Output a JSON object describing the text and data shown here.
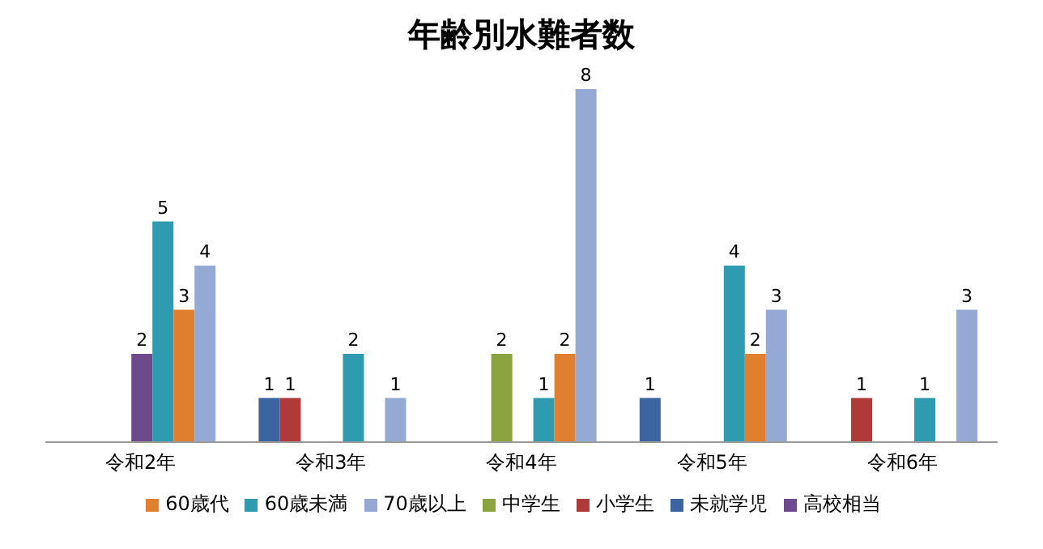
{
  "chart_data": {
    "type": "bar",
    "title": "年齢別水難者数",
    "categories": [
      "令和2年",
      "令和3年",
      "令和4年",
      "令和5年",
      "令和6年"
    ],
    "series": [
      {
        "name": "未就学児",
        "color": "#3b64a0",
        "values": [
          null,
          1,
          null,
          1,
          null
        ]
      },
      {
        "name": "小学生",
        "color": "#b03a3a",
        "values": [
          null,
          1,
          null,
          null,
          1
        ]
      },
      {
        "name": "中学生",
        "color": "#8aa53f",
        "values": [
          null,
          null,
          2,
          null,
          null
        ]
      },
      {
        "name": "高校相当",
        "color": "#6c4a8c",
        "values": [
          2,
          null,
          null,
          null,
          null
        ]
      },
      {
        "name": "60歳未満",
        "color": "#2e9bb0",
        "values": [
          5,
          2,
          1,
          4,
          1
        ]
      },
      {
        "name": "60歳代",
        "color": "#e0802f",
        "values": [
          3,
          null,
          2,
          2,
          null
        ]
      },
      {
        "name": "70歳以上",
        "color": "#94a9d4",
        "values": [
          4,
          1,
          8,
          3,
          3
        ]
      }
    ],
    "data_labels": true,
    "legend": "bottom",
    "grid": false
  }
}
